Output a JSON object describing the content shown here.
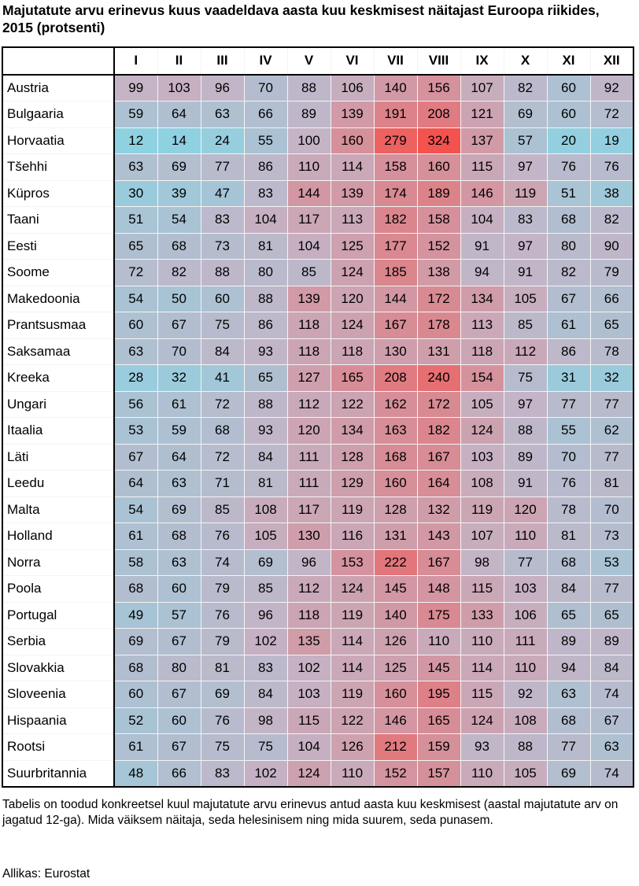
{
  "title": "Majutatute arvu erinevus kuus vaadeldava aasta kuu keskmisest näitajast Euroopa riikides, 2015 (protsenti)",
  "note": "Tabelis on toodud konkreetsel kuul majutatute arvu erinevus antud aasta kuu keskmisest (aastal majutatute arv on jagatud 12-ga). Mida väiksem näitaja, seda helesinisem ning mida suurem, seda punasem.",
  "source": "Allikas: Eurostat",
  "colors": {
    "low": "#8ed2e2",
    "mid": "#c4b4c6",
    "high": "#f4524f"
  },
  "chart_data": {
    "type": "heatmap",
    "columns": [
      "I",
      "II",
      "III",
      "IV",
      "V",
      "VI",
      "VII",
      "VIII",
      "IX",
      "X",
      "XI",
      "XII"
    ],
    "rows": [
      {
        "name": "Austria",
        "values": [
          99,
          103,
          96,
          70,
          88,
          106,
          140,
          156,
          107,
          82,
          60,
          92
        ]
      },
      {
        "name": "Bulgaaria",
        "values": [
          59,
          64,
          63,
          66,
          89,
          139,
          191,
          208,
          121,
          69,
          60,
          72
        ]
      },
      {
        "name": "Horvaatia",
        "values": [
          12,
          14,
          24,
          55,
          100,
          160,
          279,
          324,
          137,
          57,
          20,
          19
        ]
      },
      {
        "name": "Tšehhi",
        "values": [
          63,
          69,
          77,
          86,
          110,
          114,
          158,
          160,
          115,
          97,
          76,
          76
        ]
      },
      {
        "name": "Küpros",
        "values": [
          30,
          39,
          47,
          83,
          144,
          139,
          174,
          189,
          146,
          119,
          51,
          38
        ]
      },
      {
        "name": "Taani",
        "values": [
          51,
          54,
          83,
          104,
          117,
          113,
          182,
          158,
          104,
          83,
          68,
          82
        ]
      },
      {
        "name": "Eesti",
        "values": [
          65,
          68,
          73,
          81,
          104,
          125,
          177,
          152,
          91,
          97,
          80,
          90
        ]
      },
      {
        "name": "Soome",
        "values": [
          72,
          82,
          88,
          80,
          85,
          124,
          185,
          138,
          94,
          91,
          82,
          79
        ]
      },
      {
        "name": "Makedoonia",
        "values": [
          54,
          50,
          60,
          88,
          139,
          120,
          144,
          172,
          134,
          105,
          67,
          66
        ]
      },
      {
        "name": "Prantsusmaa",
        "values": [
          60,
          67,
          75,
          86,
          118,
          124,
          167,
          178,
          113,
          85,
          61,
          65
        ]
      },
      {
        "name": "Saksamaa",
        "values": [
          63,
          70,
          84,
          93,
          118,
          118,
          130,
          131,
          118,
          112,
          86,
          78
        ]
      },
      {
        "name": "Kreeka",
        "values": [
          28,
          32,
          41,
          65,
          127,
          165,
          208,
          240,
          154,
          75,
          31,
          32
        ]
      },
      {
        "name": "Ungari",
        "values": [
          56,
          61,
          72,
          88,
          112,
          122,
          162,
          172,
          105,
          97,
          77,
          77
        ]
      },
      {
        "name": "Itaalia",
        "values": [
          53,
          59,
          68,
          93,
          120,
          134,
          163,
          182,
          124,
          88,
          55,
          62
        ]
      },
      {
        "name": "Läti",
        "values": [
          67,
          64,
          72,
          84,
          111,
          128,
          168,
          167,
          103,
          89,
          70,
          77
        ]
      },
      {
        "name": "Leedu",
        "values": [
          64,
          63,
          71,
          81,
          111,
          129,
          160,
          164,
          108,
          91,
          76,
          81
        ]
      },
      {
        "name": "Malta",
        "values": [
          54,
          69,
          85,
          108,
          117,
          119,
          128,
          132,
          119,
          120,
          78,
          70
        ]
      },
      {
        "name": "Holland",
        "values": [
          61,
          68,
          76,
          105,
          130,
          116,
          131,
          143,
          107,
          110,
          81,
          73
        ]
      },
      {
        "name": "Norra",
        "values": [
          58,
          63,
          74,
          69,
          96,
          153,
          222,
          167,
          98,
          77,
          68,
          53
        ]
      },
      {
        "name": "Poola",
        "values": [
          68,
          60,
          79,
          85,
          112,
          124,
          145,
          148,
          115,
          103,
          84,
          77
        ]
      },
      {
        "name": "Portugal",
        "values": [
          49,
          57,
          76,
          96,
          118,
          119,
          140,
          175,
          133,
          106,
          65,
          65
        ]
      },
      {
        "name": "Serbia",
        "values": [
          69,
          67,
          79,
          102,
          135,
          114,
          126,
          110,
          110,
          111,
          89,
          89
        ]
      },
      {
        "name": "Slovakkia",
        "values": [
          68,
          80,
          81,
          83,
          102,
          114,
          125,
          145,
          114,
          110,
          94,
          84
        ]
      },
      {
        "name": "Sloveenia",
        "values": [
          60,
          67,
          69,
          84,
          103,
          119,
          160,
          195,
          115,
          92,
          63,
          74
        ]
      },
      {
        "name": "Hispaania",
        "values": [
          52,
          60,
          76,
          98,
          115,
          122,
          146,
          165,
          124,
          108,
          68,
          67
        ]
      },
      {
        "name": "Rootsi",
        "values": [
          61,
          67,
          75,
          75,
          104,
          126,
          212,
          159,
          93,
          88,
          77,
          63
        ]
      },
      {
        "name": "Suurbritannia",
        "values": [
          48,
          66,
          83,
          102,
          124,
          110,
          152,
          157,
          110,
          105,
          69,
          74
        ]
      }
    ]
  }
}
